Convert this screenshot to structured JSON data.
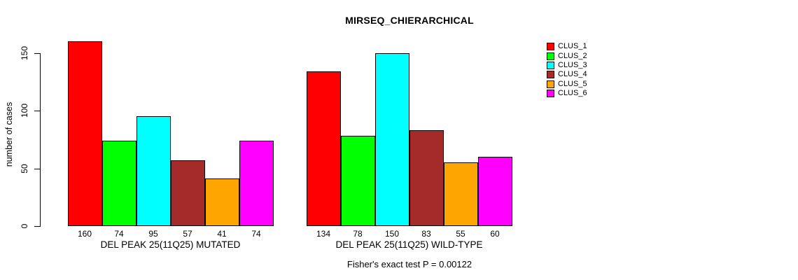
{
  "title": "MIRSEQ_CHIERARCHICAL",
  "chart_data": {
    "type": "bar",
    "title": "MIRSEQ_CHIERARCHICAL",
    "xlabel": "",
    "ylabel": "number of cases",
    "ylim": [
      0,
      160
    ],
    "yticks": [
      0,
      50,
      100,
      150
    ],
    "grid": false,
    "legend_position": "top-right",
    "series_labels": [
      "CLUS_1",
      "CLUS_2",
      "CLUS_3",
      "CLUS_4",
      "CLUS_5",
      "CLUS_6"
    ],
    "colors": [
      "#FF0000",
      "#00FF00",
      "#00FFFF",
      "#A52A2A",
      "#FFA500",
      "#FF00FF"
    ],
    "groups": [
      {
        "label": "DEL PEAK 25(11Q25) MUTATED",
        "values": [
          160,
          74,
          95,
          57,
          41,
          74
        ]
      },
      {
        "label": "DEL PEAK 25(11Q25) WILD-TYPE",
        "values": [
          134,
          78,
          150,
          83,
          55,
          60
        ]
      }
    ],
    "annotation": "Fisher's exact test P = 0.00122"
  }
}
